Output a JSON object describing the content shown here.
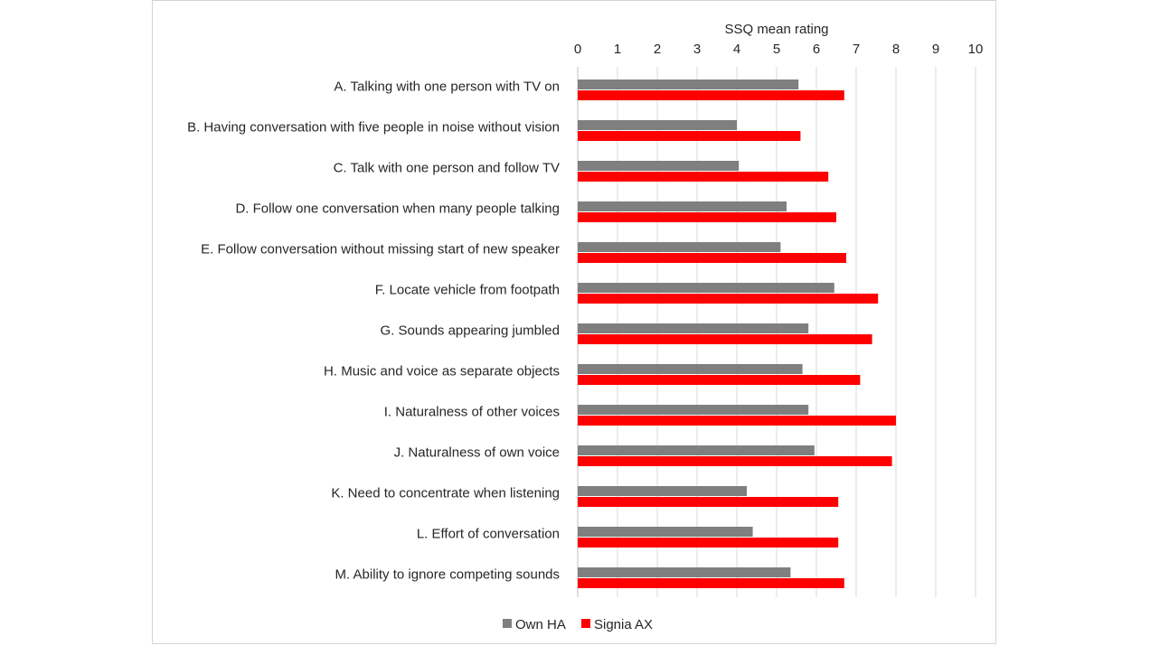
{
  "chart_data": {
    "type": "bar",
    "orientation": "horizontal",
    "xlabel": "SSQ mean rating",
    "xlabel_position": "top",
    "xlim": [
      0,
      10
    ],
    "ticks": [
      "0",
      "1",
      "2",
      "3",
      "4",
      "5",
      "6",
      "7",
      "8",
      "9",
      "10"
    ],
    "grid": true,
    "legend_position": "bottom",
    "categories": [
      "A. Talking with one person with TV on",
      "B. Having conversation with five people in noise without vision",
      "C. Talk with one person and follow TV",
      "D. Follow one conversation when many people talking",
      "E. Follow conversation without missing start of new speaker",
      "F. Locate vehicle from footpath",
      "G. Sounds appearing jumbled",
      "H. Music and voice as separate objects",
      "I. Naturalness of other voices",
      "J. Naturalness of own voice",
      "K. Need to concentrate when listening",
      "L. Effort of conversation",
      "M. Ability to ignore competing sounds"
    ],
    "series": [
      {
        "name": "Own HA",
        "color": "#7f7f7f",
        "values": [
          5.55,
          4.0,
          4.05,
          5.25,
          5.1,
          6.45,
          5.8,
          5.65,
          5.8,
          5.95,
          4.25,
          4.4,
          5.35
        ]
      },
      {
        "name": "Signia AX",
        "color": "#ff0000",
        "values": [
          6.7,
          5.6,
          6.3,
          6.5,
          6.75,
          7.55,
          7.4,
          7.1,
          8.0,
          7.9,
          6.55,
          6.55,
          6.7
        ]
      }
    ],
    "gridline_color": "#d9d9d9"
  }
}
